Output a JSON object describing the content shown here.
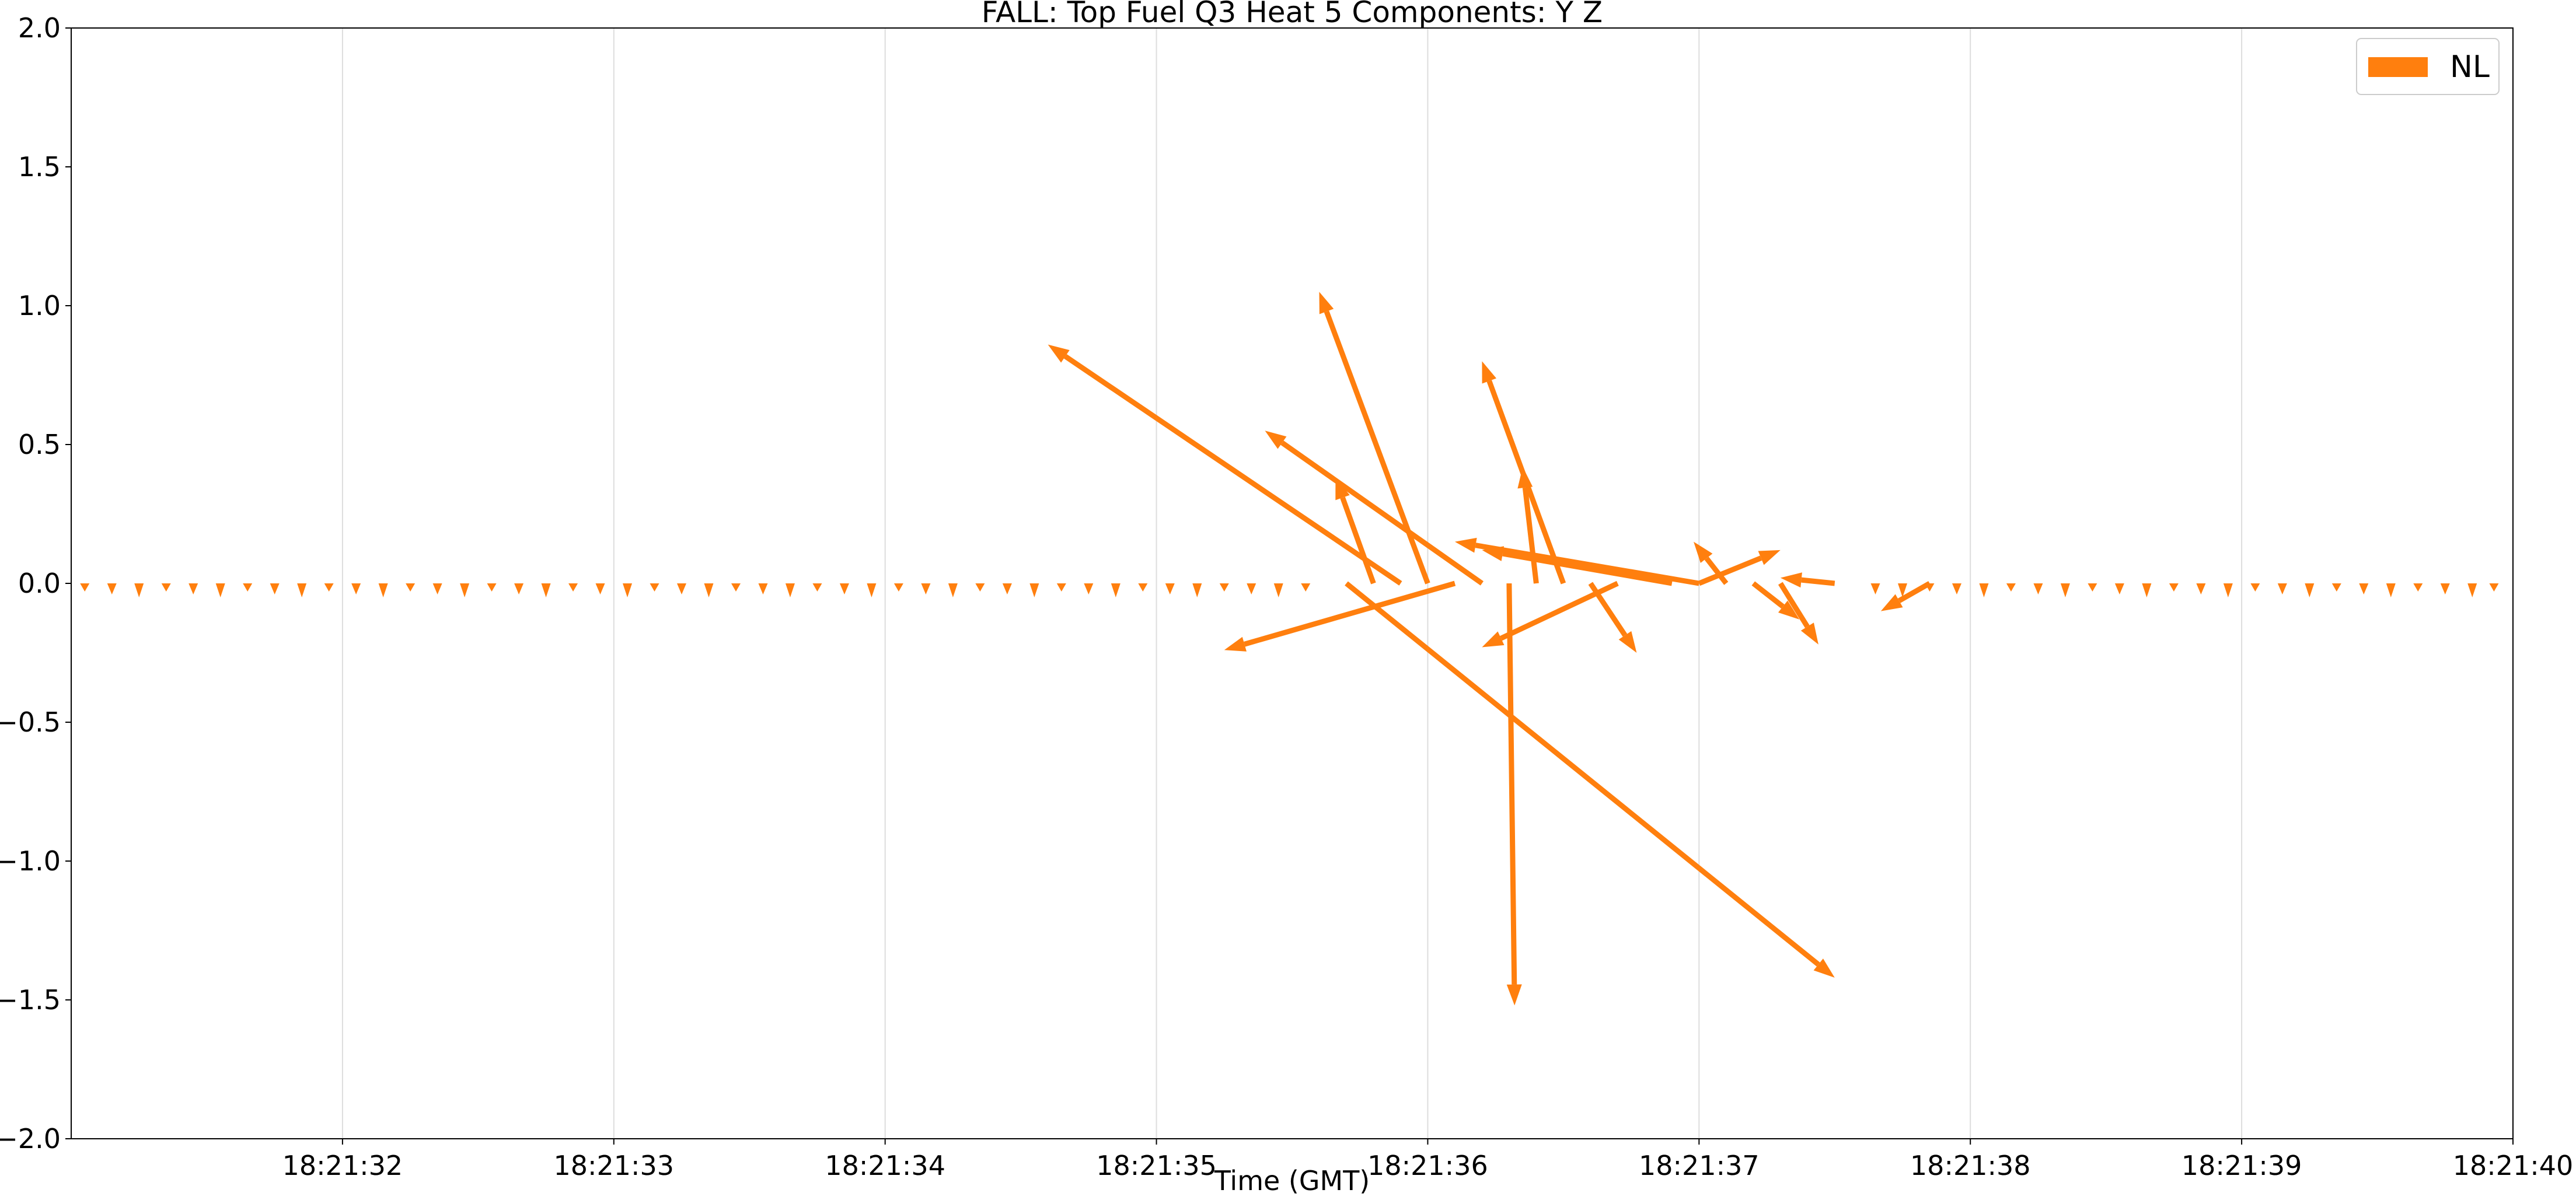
{
  "chart_data": {
    "type": "quiver",
    "title": "FALL: Top Fuel Q3 Heat 5 Components: Y Z",
    "xlabel": "Time (GMT)",
    "ylabel": "",
    "x_tick_labels": [
      "18:21:32",
      "18:21:33",
      "18:21:34",
      "18:21:35",
      "18:21:36",
      "18:21:37",
      "18:21:38",
      "18:21:39",
      "18:21:40"
    ],
    "x_ticks_seconds": [
      32,
      33,
      34,
      35,
      36,
      37,
      38,
      39,
      40
    ],
    "xlim_seconds": [
      31.0,
      40.0
    ],
    "x_axis_prefix": "18:21:",
    "ylim": [
      -2.0,
      2.0
    ],
    "y_ticks": [
      -2.0,
      -1.5,
      -1.0,
      -0.5,
      0.0,
      0.5,
      1.0,
      1.5,
      2.0
    ],
    "y_tick_labels": [
      "−2.0",
      "−1.5",
      "−1.0",
      "−0.5",
      "0.0",
      "0.5",
      "1.0",
      "1.5",
      "2.0"
    ],
    "grid": "vertical",
    "legend_position": "top-right",
    "series": [
      {
        "name": "NL",
        "color": "#ff7f0e",
        "vectors": [
          {
            "t": 35.9,
            "u": -1.3,
            "v": 0.86
          },
          {
            "t": 36.0,
            "u": -0.4,
            "v": 1.05
          },
          {
            "t": 36.2,
            "u": -0.8,
            "v": 0.55
          },
          {
            "t": 35.8,
            "u": -0.14,
            "v": 0.38
          },
          {
            "t": 36.5,
            "u": -0.3,
            "v": 0.8
          },
          {
            "t": 36.4,
            "u": -0.05,
            "v": 0.42
          },
          {
            "t": 37.0,
            "u": -0.9,
            "v": 0.15
          },
          {
            "t": 36.9,
            "u": -0.7,
            "v": 0.12
          },
          {
            "t": 36.1,
            "u": -0.85,
            "v": -0.24
          },
          {
            "t": 35.7,
            "u": 1.8,
            "v": -1.42
          },
          {
            "t": 36.3,
            "u": 0.02,
            "v": -1.52
          },
          {
            "t": 36.7,
            "u": -0.5,
            "v": -0.23
          },
          {
            "t": 36.6,
            "u": 0.17,
            "v": -0.25
          },
          {
            "t": 37.1,
            "u": -0.12,
            "v": 0.15
          },
          {
            "t": 37.0,
            "u": 0.3,
            "v": 0.12
          },
          {
            "t": 37.2,
            "u": 0.17,
            "v": -0.13
          },
          {
            "t": 37.3,
            "u": 0.14,
            "v": -0.22
          },
          {
            "t": 37.5,
            "u": -0.2,
            "v": 0.02
          },
          {
            "t": 37.85,
            "u": -0.18,
            "v": -0.1
          }
        ],
        "small_vectors_t": [
          31.05,
          31.15,
          31.25,
          31.35,
          31.45,
          31.55,
          31.65,
          31.75,
          31.85,
          31.95,
          32.05,
          32.15,
          32.25,
          32.35,
          32.45,
          32.55,
          32.65,
          32.75,
          32.85,
          32.95,
          33.05,
          33.15,
          33.25,
          33.35,
          33.45,
          33.55,
          33.65,
          33.75,
          33.85,
          33.95,
          34.05,
          34.15,
          34.25,
          34.35,
          34.45,
          34.55,
          34.65,
          34.75,
          34.85,
          34.95,
          35.05,
          35.15,
          35.25,
          35.35,
          35.45,
          35.55,
          37.65,
          37.75,
          37.85,
          37.95,
          38.05,
          38.15,
          38.25,
          38.35,
          38.45,
          38.55,
          38.65,
          38.75,
          38.85,
          38.95,
          39.05,
          39.15,
          39.25,
          39.35,
          39.45,
          39.55,
          39.65,
          39.75,
          39.85,
          39.93
        ]
      }
    ]
  }
}
